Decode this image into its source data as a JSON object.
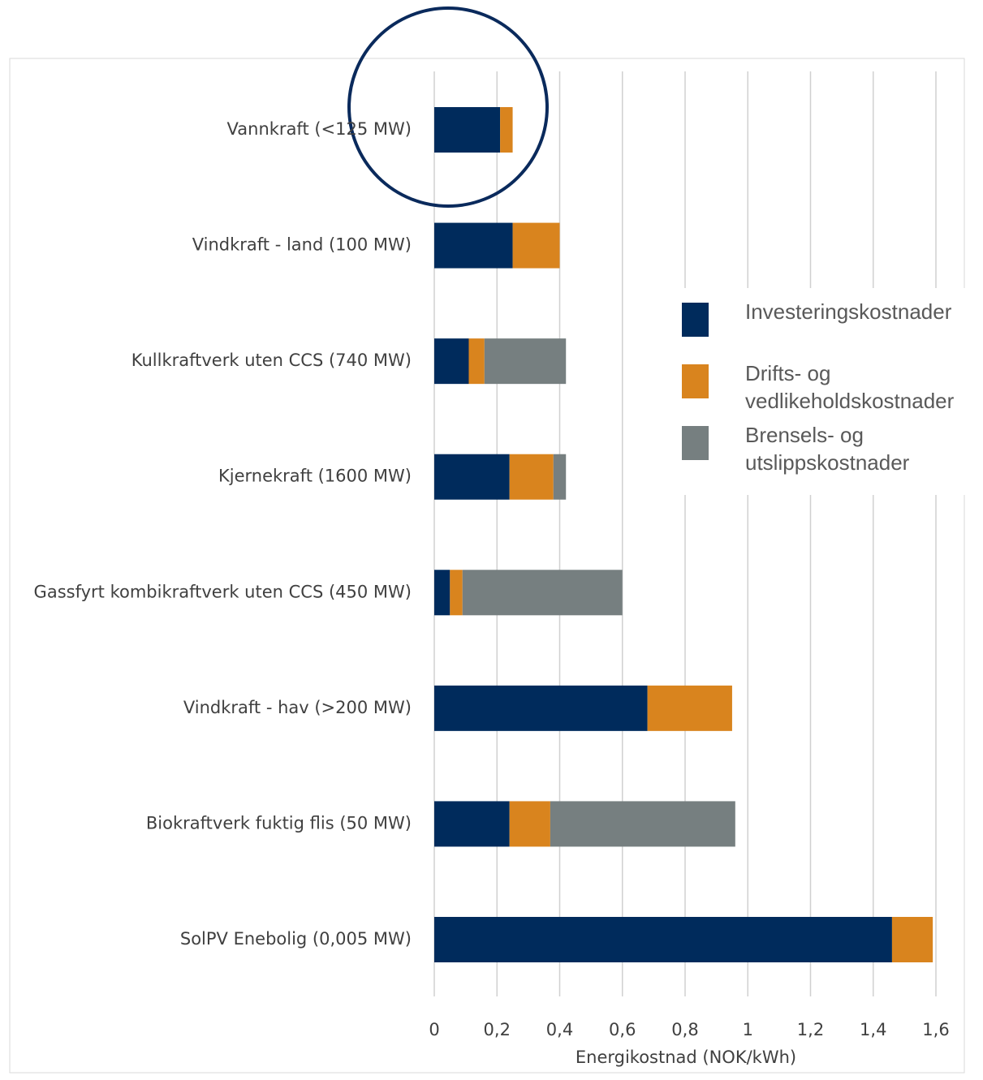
{
  "chart_data": {
    "type": "stacked_bar_horizontal",
    "x_label": "Energikostnad (NOK/kWh)",
    "categories": [
      "Vannkraft (<125 MW)",
      "Vindkraft - land (100 MW)",
      "Kullkraftverk uten CCS (740 MW)",
      "Kjernekraft (1600 MW)",
      "Gassfyrt kombikraftverk uten CCS (450 MW)",
      "Vindkraft - hav (>200 MW)",
      "Biokraftverk fuktig flis (50 MW)",
      "SolPV Enebolig (0,005 MW)"
    ],
    "series": [
      {
        "name": "Investeringskostnader",
        "color": "#002b5c",
        "values": [
          0.21,
          0.25,
          0.11,
          0.24,
          0.05,
          0.68,
          0.24,
          1.46
        ]
      },
      {
        "name": "Drifts- og vedlikeholdskostnader",
        "color": "#d9841e",
        "values": [
          0.04,
          0.15,
          0.05,
          0.14,
          0.04,
          0.27,
          0.13,
          0.13
        ]
      },
      {
        "name": "Brensels- og utslippskostnader",
        "color": "#767f80",
        "values": [
          0,
          0,
          0.26,
          0.04,
          0.51,
          0,
          0.59,
          0
        ]
      }
    ],
    "xlim": [
      0,
      1.6
    ],
    "xticks": [
      0,
      {
        "value": 0.2,
        "label": "0,2"
      },
      {
        "value": 0.4,
        "label": "0,4"
      },
      {
        "value": 0.6,
        "label": "0,6"
      },
      {
        "value": 0.8,
        "label": "0,8"
      },
      1,
      {
        "value": 1.2,
        "label": "1,2"
      },
      {
        "value": 1.4,
        "label": "1,4"
      },
      {
        "value": 1.6,
        "label": "1,6"
      }
    ],
    "grid": true,
    "legend": "right"
  }
}
